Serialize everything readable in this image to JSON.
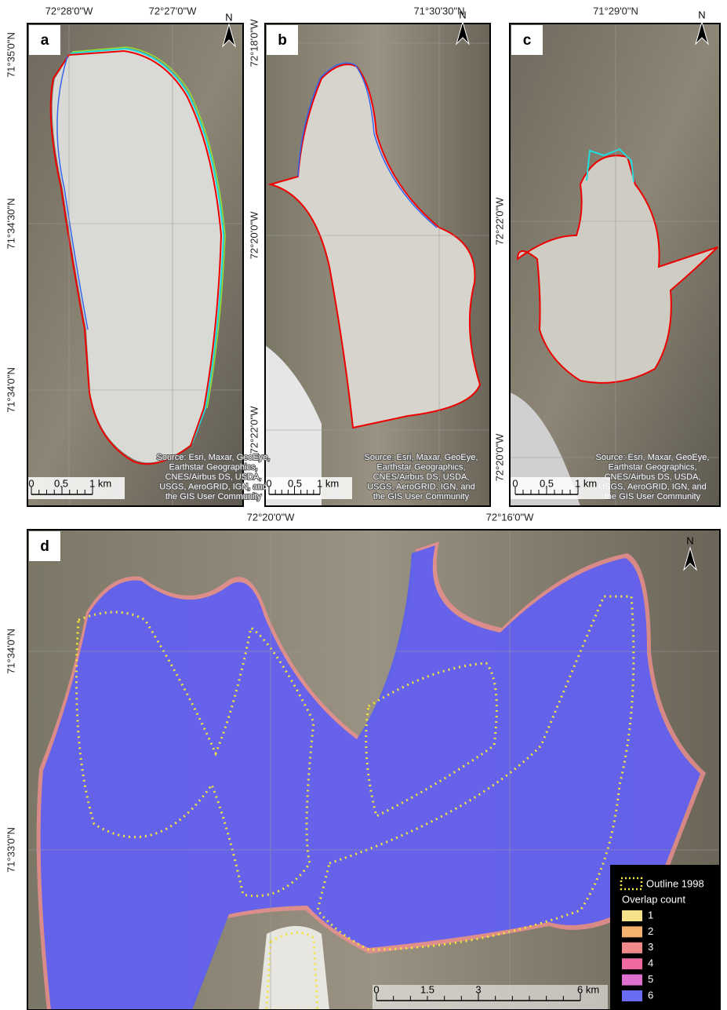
{
  "panels": [
    {
      "label": "a",
      "top_labels": [
        "72°28'0\"W",
        "72°27'0\"W"
      ],
      "left_labels": [
        "71°35'0\"N",
        "71°34'30\"N",
        "71°34'0\"N"
      ],
      "north": "N",
      "source": [
        "Source: Esri, Maxar, GeoEye,",
        "Earthstar Geographics,",
        "CNES/Airbus DS, USDA,",
        "USGS, AeroGRID, IGN, and",
        "the GIS User Community"
      ],
      "scale": [
        "0",
        "0.5",
        "1 km"
      ]
    },
    {
      "label": "b",
      "top_labels": [
        "71°30'30\"N"
      ],
      "left_labels": [
        "72°18'0\"W",
        "72°20'0\"W",
        "72°22'0\"W"
      ],
      "north": "N",
      "source": [
        "Source: Esri, Maxar, GeoEye,",
        "Earthstar Geographics,",
        "CNES/Airbus DS, USDA,",
        "USGS, AeroGRID, IGN, and",
        "the GIS User Community"
      ],
      "scale": [
        "0",
        "0.5",
        "1 km"
      ]
    },
    {
      "label": "c",
      "top_labels": [
        "71°29'0\"N"
      ],
      "left_labels": [
        "72°22'0\"W",
        "72°20'0\"W"
      ],
      "north": "N",
      "source": [
        "Source: Esri, Maxar, GeoEye,",
        "Earthstar Geographics,",
        "CNES/Airbus DS, USDA,",
        "USGS, AeroGRID, IGN, and",
        "the GIS User Community"
      ],
      "scale": [
        "0",
        "0.5",
        "1 km"
      ]
    },
    {
      "label": "d",
      "top_labels": [
        "72°20'0\"W",
        "72°16'0\"W"
      ],
      "left_labels": [
        "71°34'0\"N",
        "71°33'0\"N"
      ],
      "north": "N",
      "scale": [
        "0",
        "1.5",
        "3",
        "6 km"
      ]
    }
  ],
  "legend": {
    "outline": "Outline 1998",
    "title": "Overlap count",
    "items": [
      {
        "label": "1",
        "color": "#f7e08a"
      },
      {
        "label": "2",
        "color": "#f4b06f"
      },
      {
        "label": "3",
        "color": "#f08a8a"
      },
      {
        "label": "4",
        "color": "#ef6aa0"
      },
      {
        "label": "5",
        "color": "#e070d0"
      },
      {
        "label": "6",
        "color": "#6b6cf5"
      }
    ]
  }
}
